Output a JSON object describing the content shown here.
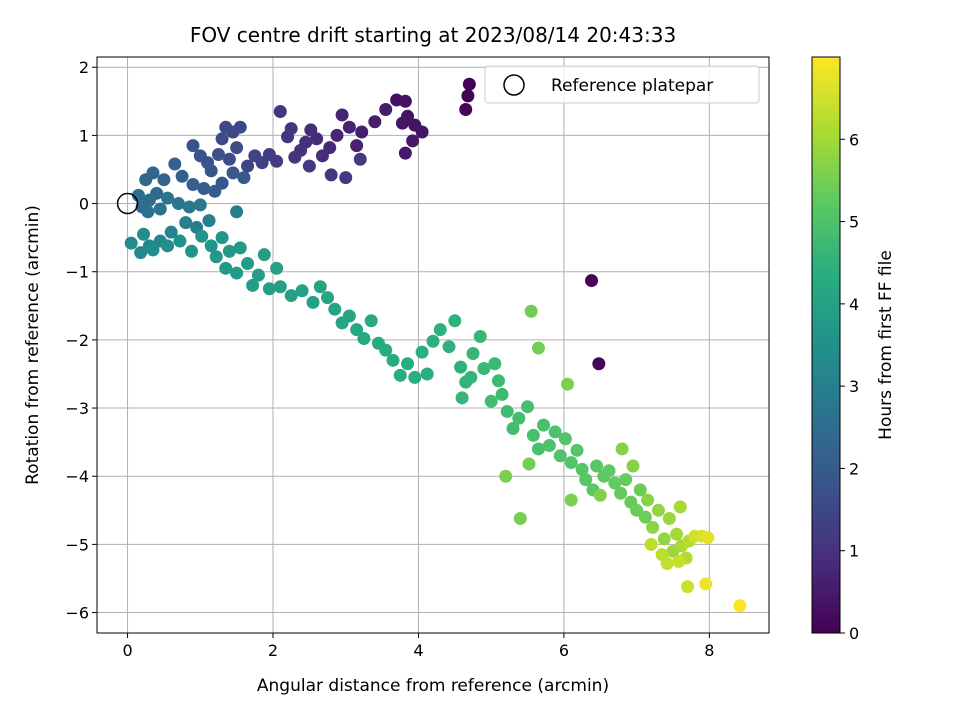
{
  "chart_data": {
    "type": "scatter",
    "title": "FOV centre drift starting at 2023/08/14 20:43:33",
    "xlabel": "Angular distance from reference (arcmin)",
    "ylabel": "Rotation from reference (arcmin)",
    "xlim": [
      -0.42,
      8.82
    ],
    "ylim": [
      -6.3,
      2.15
    ],
    "xticks": [
      0,
      2,
      4,
      6,
      8
    ],
    "yticks": [
      -6,
      -5,
      -4,
      -3,
      -2,
      -1,
      0,
      1,
      2
    ],
    "grid": true,
    "legend": {
      "position": "top-right",
      "entries": [
        "Reference platepar"
      ]
    },
    "reference_point": {
      "x": 0,
      "y": 0
    },
    "colorbar": {
      "label": "Hours from first FF file",
      "min": 0,
      "max": 7.0,
      "ticks": [
        0,
        1,
        2,
        3,
        4,
        5,
        6
      ],
      "colormap": "viridis"
    },
    "points": [
      [
        4.7,
        1.75,
        0.05
      ],
      [
        4.68,
        1.58,
        0.07
      ],
      [
        4.65,
        1.38,
        0.1
      ],
      [
        6.38,
        -1.13,
        0.08
      ],
      [
        6.48,
        -2.35,
        0.12
      ],
      [
        3.7,
        1.52,
        0.3
      ],
      [
        3.82,
        1.5,
        0.32
      ],
      [
        3.85,
        1.28,
        0.38
      ],
      [
        3.95,
        1.15,
        0.36
      ],
      [
        4.05,
        1.05,
        0.4
      ],
      [
        3.78,
        1.18,
        0.42
      ],
      [
        3.92,
        0.92,
        0.45
      ],
      [
        3.82,
        0.74,
        0.5
      ],
      [
        3.55,
        1.38,
        0.55
      ],
      [
        3.4,
        1.2,
        0.6
      ],
      [
        3.22,
        1.05,
        0.62
      ],
      [
        3.15,
        0.85,
        0.65
      ],
      [
        3.05,
        1.12,
        0.7
      ],
      [
        2.95,
        1.3,
        0.72
      ],
      [
        2.88,
        1.0,
        0.75
      ],
      [
        2.78,
        0.82,
        0.8
      ],
      [
        2.68,
        0.7,
        0.85
      ],
      [
        2.6,
        0.95,
        0.88
      ],
      [
        2.52,
        1.08,
        0.9
      ],
      [
        2.45,
        0.9,
        0.95
      ],
      [
        2.38,
        0.78,
        1.0
      ],
      [
        2.3,
        0.68,
        1.02
      ],
      [
        2.2,
        0.98,
        1.05
      ],
      [
        2.1,
        1.35,
        1.08
      ],
      [
        2.25,
        1.1,
        1.1
      ],
      [
        2.8,
        0.42,
        1.12
      ],
      [
        3.0,
        0.38,
        1.15
      ],
      [
        3.2,
        0.65,
        1.18
      ],
      [
        2.5,
        0.55,
        1.2
      ],
      [
        2.05,
        0.62,
        1.25
      ],
      [
        1.95,
        0.72,
        1.3
      ],
      [
        1.85,
        0.6,
        1.35
      ],
      [
        1.75,
        0.7,
        1.4
      ],
      [
        1.65,
        0.55,
        1.45
      ],
      [
        1.55,
        1.12,
        1.5
      ],
      [
        1.45,
        1.05,
        1.52
      ],
      [
        1.35,
        1.12,
        1.55
      ],
      [
        1.3,
        0.95,
        1.6
      ],
      [
        1.5,
        0.82,
        1.62
      ],
      [
        1.4,
        0.65,
        1.65
      ],
      [
        1.25,
        0.72,
        1.7
      ],
      [
        1.1,
        0.6,
        1.75
      ],
      [
        1.0,
        0.7,
        1.78
      ],
      [
        0.9,
        0.85,
        1.8
      ],
      [
        1.15,
        0.48,
        1.85
      ],
      [
        1.3,
        0.3,
        1.9
      ],
      [
        1.45,
        0.45,
        1.92
      ],
      [
        1.6,
        0.38,
        1.95
      ],
      [
        1.2,
        0.18,
        2.0
      ],
      [
        1.05,
        0.22,
        2.05
      ],
      [
        0.9,
        0.28,
        2.1
      ],
      [
        0.75,
        0.4,
        2.15
      ],
      [
        0.65,
        0.58,
        2.2
      ],
      [
        0.5,
        0.35,
        2.25
      ],
      [
        0.35,
        0.45,
        2.3
      ],
      [
        0.25,
        0.35,
        2.35
      ],
      [
        0.4,
        0.15,
        2.4
      ],
      [
        0.3,
        0.05,
        2.45
      ],
      [
        0.2,
        -0.05,
        2.5
      ],
      [
        0.15,
        0.12,
        2.55
      ],
      [
        0.28,
        -0.12,
        2.6
      ],
      [
        0.45,
        -0.08,
        2.65
      ],
      [
        0.55,
        0.08,
        2.7
      ],
      [
        0.7,
        0.0,
        2.75
      ],
      [
        0.85,
        -0.05,
        2.8
      ],
      [
        1.0,
        -0.02,
        2.85
      ],
      [
        1.5,
        -0.12,
        2.9
      ],
      [
        1.12,
        -0.25,
        2.95
      ],
      [
        0.95,
        -0.35,
        3.0
      ],
      [
        0.8,
        -0.28,
        3.05
      ],
      [
        0.6,
        -0.42,
        3.1
      ],
      [
        0.45,
        -0.55,
        3.15
      ],
      [
        0.3,
        -0.62,
        3.2
      ],
      [
        0.18,
        -0.72,
        3.25
      ],
      [
        0.05,
        -0.58,
        3.3
      ],
      [
        0.22,
        -0.45,
        3.35
      ],
      [
        0.35,
        -0.68,
        3.4
      ],
      [
        0.55,
        -0.62,
        3.45
      ],
      [
        0.72,
        -0.55,
        3.5
      ],
      [
        0.88,
        -0.7,
        3.55
      ],
      [
        1.02,
        -0.48,
        3.6
      ],
      [
        1.15,
        -0.62,
        3.62
      ],
      [
        1.3,
        -0.5,
        3.65
      ],
      [
        1.22,
        -0.78,
        3.68
      ],
      [
        1.4,
        -0.7,
        3.7
      ],
      [
        1.55,
        -0.65,
        3.72
      ],
      [
        1.35,
        -0.95,
        3.75
      ],
      [
        1.5,
        -1.02,
        3.78
      ],
      [
        1.65,
        -0.88,
        3.8
      ],
      [
        1.8,
        -1.05,
        3.82
      ],
      [
        1.72,
        -1.2,
        3.85
      ],
      [
        1.88,
        -0.75,
        3.88
      ],
      [
        1.95,
        -1.25,
        3.9
      ],
      [
        2.1,
        -1.22,
        3.92
      ],
      [
        2.05,
        -0.95,
        3.94
      ],
      [
        2.25,
        -1.35,
        3.96
      ],
      [
        2.4,
        -1.28,
        4.0
      ],
      [
        2.55,
        -1.45,
        4.02
      ],
      [
        2.65,
        -1.22,
        4.05
      ],
      [
        2.75,
        -1.38,
        4.08
      ],
      [
        2.85,
        -1.55,
        4.1
      ],
      [
        2.95,
        -1.75,
        4.12
      ],
      [
        3.05,
        -1.65,
        4.15
      ],
      [
        3.15,
        -1.85,
        4.18
      ],
      [
        3.25,
        -1.98,
        4.2
      ],
      [
        3.35,
        -1.72,
        4.22
      ],
      [
        3.45,
        -2.05,
        4.25
      ],
      [
        3.55,
        -2.15,
        4.28
      ],
      [
        3.65,
        -2.3,
        4.3
      ],
      [
        3.75,
        -2.52,
        4.32
      ],
      [
        3.85,
        -2.35,
        4.35
      ],
      [
        3.95,
        -2.55,
        4.38
      ],
      [
        4.05,
        -2.18,
        4.4
      ],
      [
        4.12,
        -2.5,
        4.42
      ],
      [
        4.2,
        -2.02,
        4.44
      ],
      [
        4.3,
        -1.85,
        4.46
      ],
      [
        4.42,
        -2.1,
        4.48
      ],
      [
        4.5,
        -1.72,
        4.5
      ],
      [
        4.58,
        -2.4,
        4.52
      ],
      [
        4.65,
        -2.62,
        4.55
      ],
      [
        4.72,
        -2.55,
        4.58
      ],
      [
        4.6,
        -2.85,
        4.6
      ],
      [
        4.75,
        -2.2,
        4.62
      ],
      [
        4.85,
        -1.95,
        4.65
      ],
      [
        4.9,
        -2.42,
        4.68
      ],
      [
        5.05,
        -2.35,
        4.7
      ],
      [
        5.1,
        -2.6,
        4.72
      ],
      [
        5.15,
        -2.8,
        4.75
      ],
      [
        5.0,
        -2.9,
        4.78
      ],
      [
        5.22,
        -3.05,
        4.8
      ],
      [
        5.3,
        -3.3,
        4.82
      ],
      [
        5.38,
        -3.15,
        4.85
      ],
      [
        5.5,
        -2.98,
        4.88
      ],
      [
        5.58,
        -3.4,
        4.9
      ],
      [
        5.65,
        -3.6,
        4.92
      ],
      [
        5.72,
        -3.25,
        4.95
      ],
      [
        5.8,
        -3.55,
        4.98
      ],
      [
        5.88,
        -3.35,
        5.0
      ],
      [
        5.95,
        -3.7,
        5.02
      ],
      [
        6.02,
        -3.45,
        5.05
      ],
      [
        6.1,
        -3.8,
        5.08
      ],
      [
        6.18,
        -3.62,
        5.1
      ],
      [
        6.25,
        -3.9,
        5.12
      ],
      [
        6.3,
        -4.05,
        5.15
      ],
      [
        6.4,
        -4.2,
        5.18
      ],
      [
        6.45,
        -3.85,
        5.2
      ],
      [
        6.55,
        -4.0,
        5.22
      ],
      [
        6.62,
        -3.92,
        5.25
      ],
      [
        6.7,
        -4.1,
        5.28
      ],
      [
        6.78,
        -4.25,
        5.3
      ],
      [
        6.85,
        -4.05,
        5.32
      ],
      [
        6.92,
        -4.38,
        5.35
      ],
      [
        7.0,
        -4.5,
        5.38
      ],
      [
        7.05,
        -4.2,
        5.4
      ],
      [
        7.12,
        -4.6,
        5.42
      ],
      [
        5.55,
        -1.58,
        5.45
      ],
      [
        5.65,
        -2.12,
        5.48
      ],
      [
        5.52,
        -3.82,
        5.5
      ],
      [
        5.4,
        -4.62,
        5.52
      ],
      [
        5.2,
        -4.0,
        5.55
      ],
      [
        6.05,
        -2.65,
        5.58
      ],
      [
        6.1,
        -4.35,
        5.6
      ],
      [
        6.5,
        -4.28,
        5.62
      ],
      [
        6.8,
        -3.6,
        5.65
      ],
      [
        6.95,
        -3.85,
        5.68
      ],
      [
        7.15,
        -4.35,
        5.7
      ],
      [
        7.22,
        -4.75,
        5.75
      ],
      [
        7.3,
        -4.5,
        5.8
      ],
      [
        7.38,
        -4.92,
        5.85
      ],
      [
        7.45,
        -4.62,
        5.9
      ],
      [
        7.5,
        -5.1,
        5.95
      ],
      [
        7.55,
        -4.85,
        6.0
      ],
      [
        7.6,
        -4.45,
        6.05
      ],
      [
        7.62,
        -5.02,
        6.1
      ],
      [
        7.68,
        -5.2,
        6.15
      ],
      [
        7.72,
        -4.95,
        6.2
      ],
      [
        7.35,
        -5.15,
        6.25
      ],
      [
        7.2,
        -5.0,
        6.3
      ],
      [
        7.42,
        -5.28,
        6.35
      ],
      [
        7.58,
        -5.25,
        6.4
      ],
      [
        7.7,
        -5.62,
        6.45
      ],
      [
        7.8,
        -4.88,
        6.5
      ],
      [
        7.9,
        -4.88,
        6.6
      ],
      [
        7.98,
        -4.9,
        6.7
      ],
      [
        7.95,
        -5.58,
        6.8
      ],
      [
        8.42,
        -5.9,
        6.95
      ]
    ]
  }
}
